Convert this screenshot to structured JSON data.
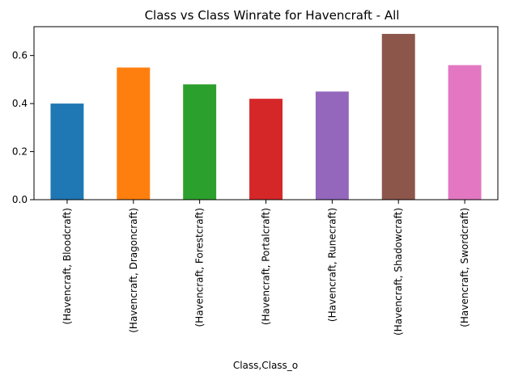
{
  "chart_data": {
    "type": "bar",
    "title": "Class vs Class Winrate for Havencraft - All",
    "xlabel": "Class,Class_o",
    "ylabel": "",
    "ylim": [
      0,
      0.72
    ],
    "yticks": [
      0.0,
      0.2,
      0.4,
      0.6
    ],
    "ytick_labels": [
      "0.0",
      "0.2",
      "0.4",
      "0.6"
    ],
    "grid": false,
    "categories": [
      "(Havencraft, Bloodcraft)",
      "(Havencraft, Dragoncraft)",
      "(Havencraft, Forestcraft)",
      "(Havencraft, Portalcraft)",
      "(Havencraft, Runecraft)",
      "(Havencraft, Shadowcraft)",
      "(Havencraft, Swordcraft)"
    ],
    "values": [
      0.4,
      0.55,
      0.48,
      0.42,
      0.45,
      0.69,
      0.56
    ],
    "colors": [
      "#1f77b4",
      "#ff7f0e",
      "#2ca02c",
      "#d62728",
      "#9467bd",
      "#8c564b",
      "#e377c2"
    ]
  }
}
